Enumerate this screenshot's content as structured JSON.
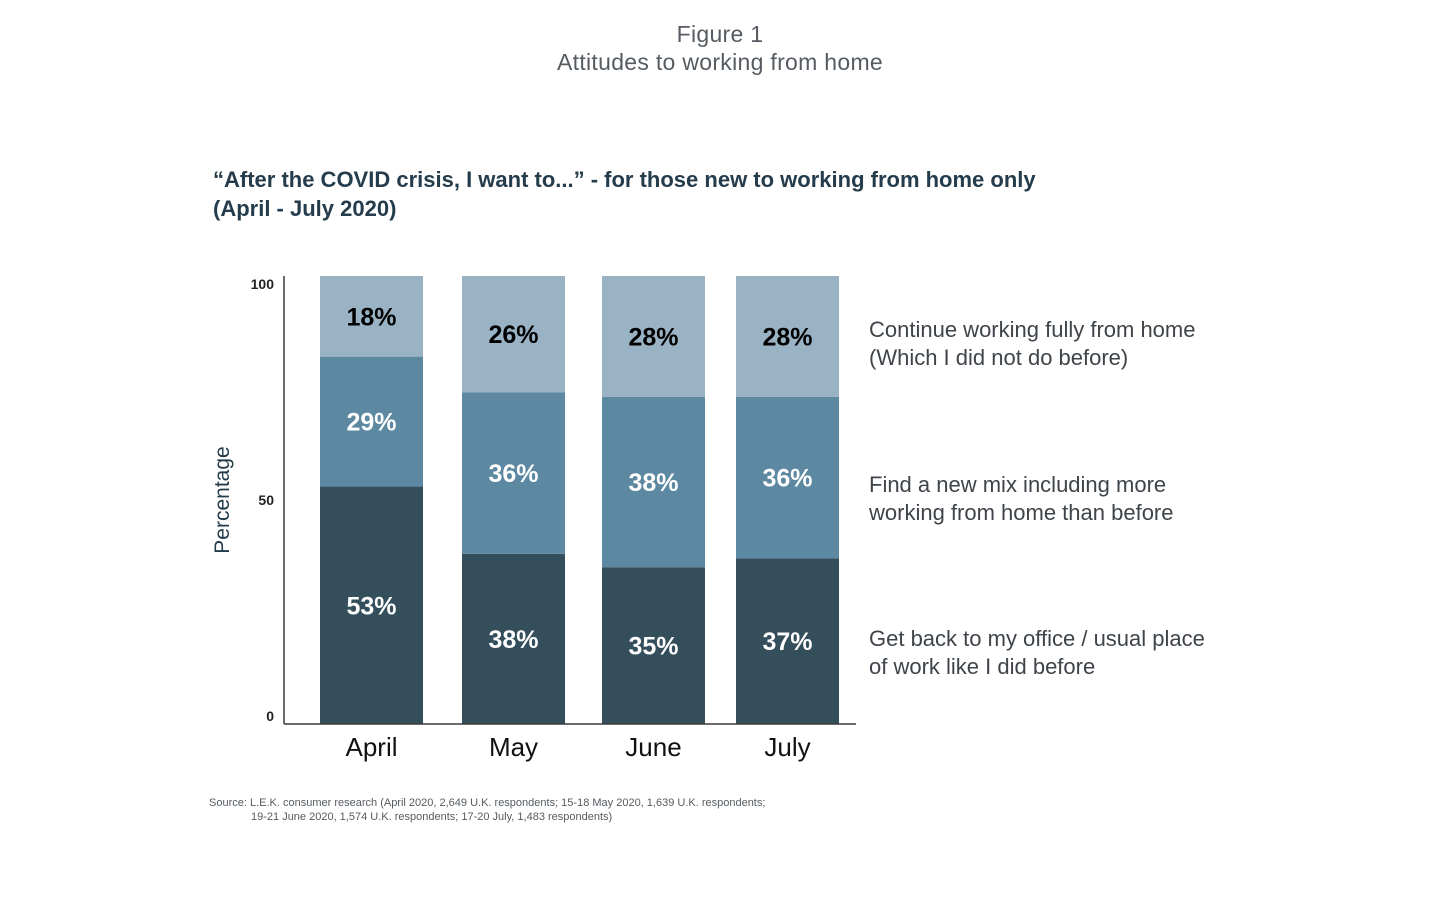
{
  "figure": {
    "label": "Figure 1",
    "title": "Attitudes to working from home"
  },
  "headline": {
    "line1": "“After the COVID crisis, I want to...” - for those new to working from home only",
    "line2": "(April - July 2020)"
  },
  "source": {
    "line1": "Source: L.E.K. consumer research (April 2020, 2,649 U.K. respondents; 15-18 May 2020, 1,639 U.K. respondents;",
    "line2": "19-21 June 2020, 1,574 U.K. respondents; 17-20 July, 1,483 respondents)"
  },
  "colors": {
    "bottom": "#344e5b",
    "middle": "#5d88a2",
    "top": "#99b2c4",
    "axis": "#3a3a3a",
    "legend_text": "#3e4449"
  },
  "chart_data": {
    "type": "bar",
    "stacked": true,
    "categories": [
      "April",
      "May",
      "June",
      "July"
    ],
    "series": [
      {
        "name": "Get back to my office / usual place of work like I did before",
        "legend_lines": [
          "Get back to my office / usual place",
          "of work like I did before"
        ],
        "values": [
          53,
          38,
          35,
          37
        ],
        "labels": [
          "53%",
          "38%",
          "35%",
          "37%"
        ],
        "color": "#344e5b",
        "label_color": "#ffffff"
      },
      {
        "name": "Find a new mix including more working from home than before",
        "legend_lines": [
          "Find a new mix including more",
          "working from home than before"
        ],
        "values": [
          29,
          36,
          38,
          36
        ],
        "labels": [
          "29%",
          "36%",
          "38%",
          "36%"
        ],
        "color": "#5d88a2",
        "label_color": "#ffffff"
      },
      {
        "name": "Continue working fully from home (Which I did not do before)",
        "legend_lines": [
          "Continue working fully from home",
          "(Which I did not do before)"
        ],
        "values": [
          18,
          26,
          28,
          28
        ],
        "labels": [
          "18%",
          "26%",
          "28%",
          "28%"
        ],
        "color": "#99b2c4",
        "label_color": "#000000"
      }
    ],
    "ylabel": "Percentage",
    "ylim": [
      0,
      100
    ],
    "yticks": [
      0,
      50,
      100
    ],
    "legend_position": "right",
    "grid": false
  }
}
